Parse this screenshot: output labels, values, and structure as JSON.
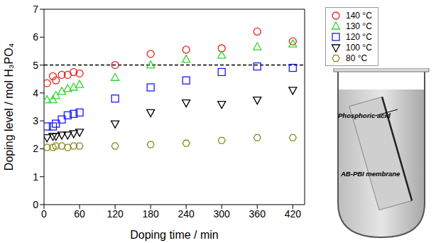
{
  "chart_data": {
    "type": "scatter",
    "x_label": "Doping time / min",
    "y_label": "Doping level / mol H₃PO₄",
    "xlim": [
      0,
      440
    ],
    "xticks": [
      0,
      60,
      120,
      180,
      240,
      300,
      360,
      420
    ],
    "ylim": [
      0,
      7
    ],
    "yticks": [
      0,
      1,
      2,
      3,
      4,
      5,
      6,
      7
    ],
    "legend": "outside upper right",
    "reference_lines": [
      {
        "value": 5,
        "line_style": "dashed",
        "color": "#000000"
      }
    ],
    "series": [
      {
        "name": "140 °C",
        "color": "#e8201c",
        "marker": "circle",
        "x": [
          5,
          15,
          20,
          30,
          40,
          50,
          60,
          120,
          180,
          240,
          300,
          360,
          420
        ],
        "values": [
          4.35,
          4.6,
          4.45,
          4.65,
          4.65,
          4.75,
          4.7,
          5.0,
          5.4,
          5.55,
          5.6,
          6.2,
          5.85
        ]
      },
      {
        "name": "130 °C",
        "color": "#2fd62f",
        "marker": "triangle",
        "x": [
          5,
          15,
          20,
          30,
          40,
          50,
          60,
          120,
          180,
          240,
          300,
          360,
          420
        ],
        "values": [
          3.75,
          3.75,
          3.9,
          4.05,
          4.15,
          4.2,
          4.3,
          4.55,
          5.0,
          5.2,
          5.35,
          5.65,
          5.75
        ]
      },
      {
        "name": "120 °C",
        "color": "#1a1aff",
        "marker": "square",
        "x": [
          5,
          15,
          20,
          30,
          40,
          50,
          60,
          120,
          180,
          240,
          300,
          360,
          420
        ],
        "values": [
          2.8,
          2.8,
          2.9,
          3.05,
          3.2,
          3.25,
          3.3,
          3.8,
          4.2,
          4.45,
          4.75,
          4.95,
          4.9
        ]
      },
      {
        "name": "100 °C",
        "color": "#000000",
        "marker": "triangle-down",
        "x": [
          5,
          15,
          20,
          30,
          40,
          50,
          60,
          120,
          180,
          240,
          300,
          360,
          420
        ],
        "values": [
          2.4,
          2.45,
          2.45,
          2.5,
          2.5,
          2.55,
          2.6,
          2.9,
          3.3,
          3.65,
          3.6,
          3.75,
          4.1
        ]
      },
      {
        "name": "80 °C",
        "color": "#8b8b22",
        "marker": "hexagon",
        "x": [
          5,
          15,
          20,
          30,
          40,
          50,
          60,
          120,
          180,
          240,
          300,
          360,
          420
        ],
        "values": [
          2.05,
          2.05,
          2.1,
          2.1,
          2.05,
          2.1,
          2.1,
          2.1,
          2.15,
          2.2,
          2.3,
          2.4,
          2.4
        ]
      }
    ]
  },
  "illustration": {
    "labels": [
      "Phosphoric acid",
      "AB-PBI membrane"
    ]
  }
}
